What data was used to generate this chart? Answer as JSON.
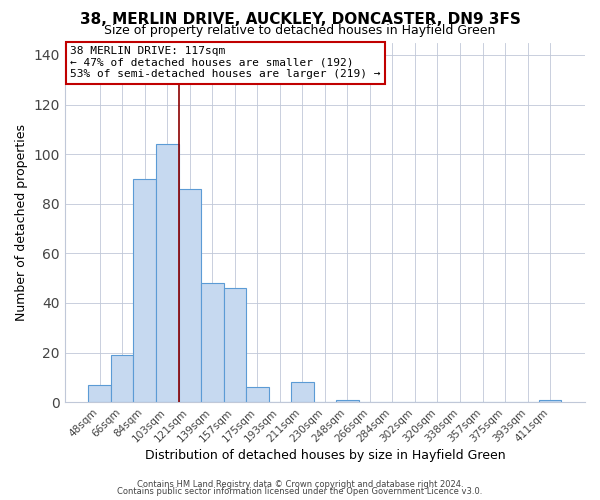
{
  "title": "38, MERLIN DRIVE, AUCKLEY, DONCASTER, DN9 3FS",
  "subtitle": "Size of property relative to detached houses in Hayfield Green",
  "xlabel": "Distribution of detached houses by size in Hayfield Green",
  "ylabel": "Number of detached properties",
  "bar_labels": [
    "48sqm",
    "66sqm",
    "84sqm",
    "103sqm",
    "121sqm",
    "139sqm",
    "157sqm",
    "175sqm",
    "193sqm",
    "211sqm",
    "230sqm",
    "248sqm",
    "266sqm",
    "284sqm",
    "302sqm",
    "320sqm",
    "338sqm",
    "357sqm",
    "375sqm",
    "393sqm",
    "411sqm"
  ],
  "bar_heights": [
    7,
    19,
    90,
    104,
    86,
    48,
    46,
    6,
    0,
    8,
    0,
    1,
    0,
    0,
    0,
    0,
    0,
    0,
    0,
    0,
    1
  ],
  "bar_color": "#c6d9f0",
  "bar_edge_color": "#5b9bd5",
  "vline_x": 3.5,
  "vline_color": "#8B0000",
  "annotation_title": "38 MERLIN DRIVE: 117sqm",
  "annotation_line1": "← 47% of detached houses are smaller (192)",
  "annotation_line2": "53% of semi-detached houses are larger (219) →",
  "annotation_box_color": "#ffffff",
  "annotation_border_color": "#c00000",
  "ylim": [
    0,
    145
  ],
  "yticks": [
    0,
    20,
    40,
    60,
    80,
    100,
    120,
    140
  ],
  "footer1": "Contains HM Land Registry data © Crown copyright and database right 2024.",
  "footer2": "Contains public sector information licensed under the Open Government Licence v3.0.",
  "bg_color": "#ffffff",
  "plot_bg_color": "#ffffff",
  "grid_color": "#c0c8d8",
  "title_fontsize": 11,
  "subtitle_fontsize": 9,
  "axis_label_fontsize": 9,
  "tick_fontsize": 7.5,
  "annotation_fontsize": 8
}
